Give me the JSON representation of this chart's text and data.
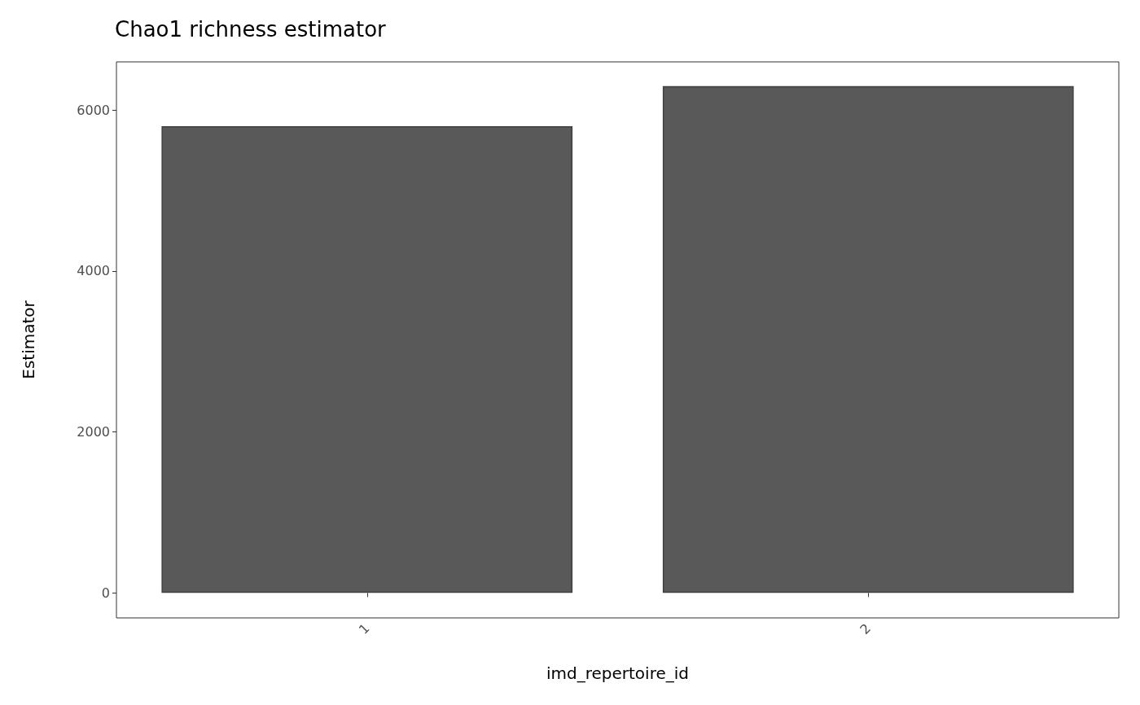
{
  "chart_data": {
    "type": "bar",
    "title": "Chao1 richness estimator",
    "xlabel": "imd_repertoire_id",
    "ylabel": "Estimator",
    "categories": [
      "1",
      "2"
    ],
    "values": [
      5800,
      6300
    ],
    "color": "#595959",
    "ylim": [
      -310,
      6600
    ],
    "yticks": [
      0,
      2000,
      4000,
      6000
    ],
    "grid": false
  }
}
